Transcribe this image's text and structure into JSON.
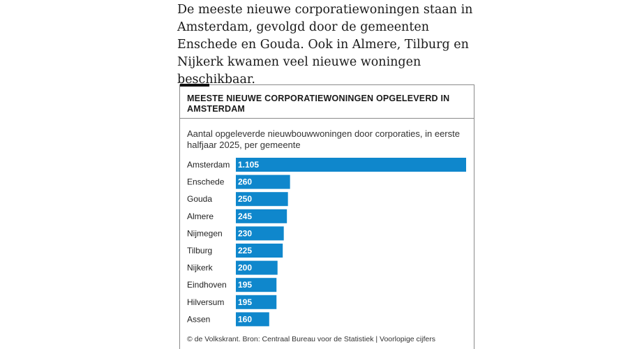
{
  "article": {
    "intro": "De meeste nieuwe corporatiewoningen staan in Amsterdam, gevolgd door de gemeenten Enschede en Gouda. Ook in Almere, Tilburg en Nijkerk kwamen veel nieuwe woningen beschikbaar."
  },
  "chart_data": {
    "type": "bar",
    "orientation": "horizontal",
    "title": "MEESTE NIEUWE CORPORATIEWONINGEN OPGELEVERD IN AMSTERDAM",
    "subtitle": "Aantal opgeleverde nieuwbouwwoningen door corporaties, in eerste halfjaar 2025, per gemeente",
    "categories": [
      "Amsterdam",
      "Enschede",
      "Gouda",
      "Almere",
      "Nijmegen",
      "Tilburg",
      "Nijkerk",
      "Eindhoven",
      "Hilversum",
      "Assen"
    ],
    "values": [
      1105,
      260,
      250,
      245,
      230,
      225,
      200,
      195,
      195,
      160
    ],
    "value_labels": [
      "1.105",
      "260",
      "250",
      "245",
      "230",
      "225",
      "200",
      "195",
      "195",
      "160"
    ],
    "xlim": [
      0,
      1105
    ],
    "grid": false,
    "legend": "none",
    "bar_color": "#0f87cc",
    "label_color": "#ffffff",
    "source": "© de Volkskrant. Bron: Centraal Bureau voor de Statistiek | Voorlopige cijfers"
  }
}
